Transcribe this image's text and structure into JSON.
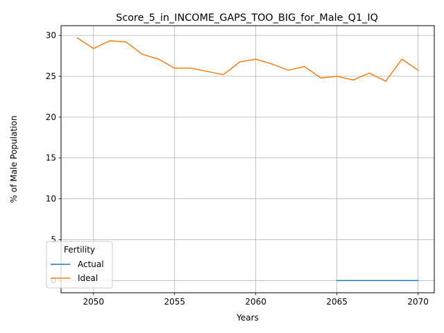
{
  "chart_data": {
    "type": "line",
    "title": "Score_5_in_INCOME_GAPS_TOO_BIG_for_Male_Q1_IQ",
    "xlabel": "Years",
    "ylabel": "% of Male Population",
    "xlim": [
      2048,
      2071
    ],
    "ylim": [
      -1.5,
      31.2
    ],
    "xticks": [
      2050,
      2055,
      2060,
      2065,
      2070
    ],
    "yticks": [
      0,
      5,
      10,
      15,
      20,
      25,
      30
    ],
    "grid": true,
    "legend": {
      "title": "Fertility",
      "location": "lower-left"
    },
    "series": [
      {
        "name": "Actual",
        "color": "#1f77b4",
        "x": [
          2065,
          2066,
          2067,
          2068,
          2069,
          2070
        ],
        "y": [
          0,
          0,
          0,
          0,
          0,
          0
        ]
      },
      {
        "name": "Ideal",
        "color": "#ff7f0e",
        "x": [
          2049,
          2050,
          2051,
          2052,
          2053,
          2054,
          2055,
          2056,
          2057,
          2058,
          2059,
          2060,
          2061,
          2062,
          2063,
          2064,
          2065,
          2066,
          2067,
          2068,
          2069,
          2070
        ],
        "y": [
          29.7,
          28.4,
          29.35,
          29.2,
          27.7,
          27.1,
          26.0,
          26.0,
          25.6,
          25.2,
          26.75,
          27.1,
          26.5,
          25.75,
          26.2,
          24.8,
          25.0,
          24.55,
          25.4,
          24.4,
          27.1,
          25.75
        ]
      }
    ]
  }
}
